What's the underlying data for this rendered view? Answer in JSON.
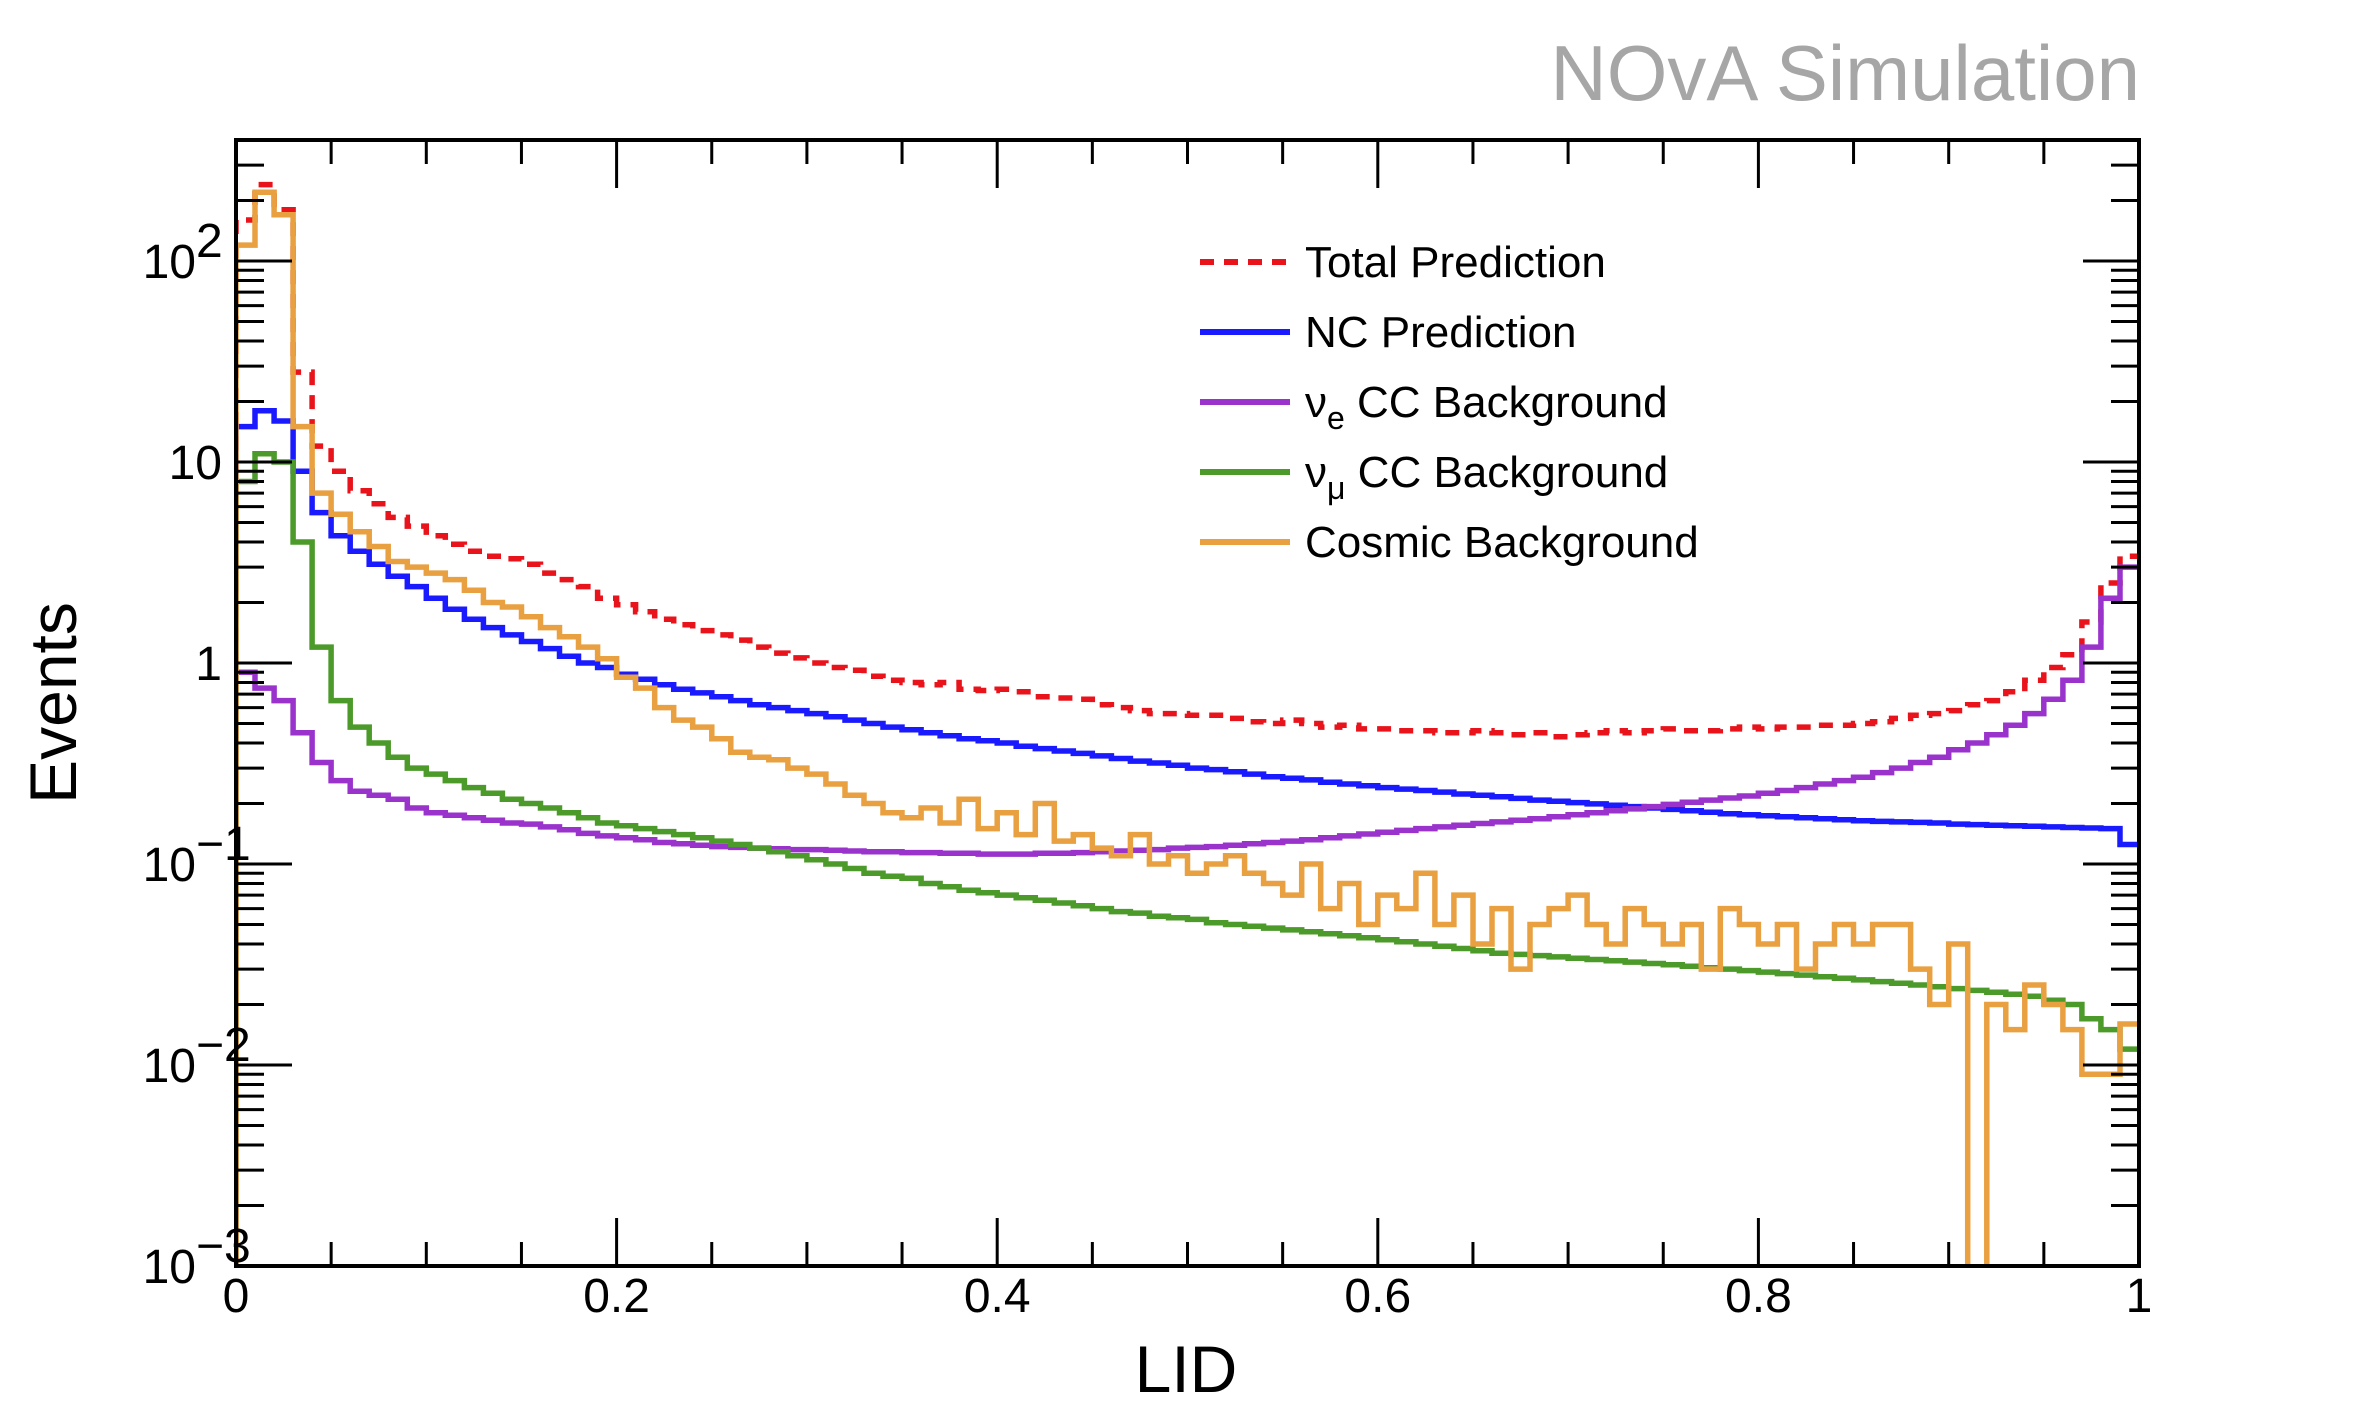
{
  "chart_data": {
    "type": "line",
    "watermark": "NOvA Simulation",
    "xlabel": "LID",
    "ylabel": "Events",
    "xlim": [
      0,
      1
    ],
    "ylim": [
      0.001,
      400
    ],
    "y_scale": "log",
    "grid": false,
    "legend_position": "top-center",
    "x_ticks": [
      {
        "value": 0,
        "label": "0"
      },
      {
        "value": 0.2,
        "label": "0.2"
      },
      {
        "value": 0.4,
        "label": "0.4"
      },
      {
        "value": 0.6,
        "label": "0.6"
      },
      {
        "value": 0.8,
        "label": "0.8"
      },
      {
        "value": 1,
        "label": "1"
      }
    ],
    "y_ticks": [
      {
        "value": 0.001,
        "base": "10",
        "exp": "−3"
      },
      {
        "value": 0.01,
        "base": "10",
        "exp": "−2"
      },
      {
        "value": 0.1,
        "base": "10",
        "exp": "−1"
      },
      {
        "value": 1,
        "base": "1",
        "exp": ""
      },
      {
        "value": 10,
        "base": "10",
        "exp": ""
      },
      {
        "value": 100,
        "base": "10",
        "exp": "2"
      }
    ],
    "x": [
      0.005,
      0.015,
      0.025,
      0.035,
      0.045,
      0.055,
      0.065,
      0.075,
      0.085,
      0.095,
      0.105,
      0.115,
      0.125,
      0.135,
      0.145,
      0.155,
      0.165,
      0.175,
      0.185,
      0.195,
      0.205,
      0.215,
      0.225,
      0.235,
      0.245,
      0.255,
      0.265,
      0.275,
      0.285,
      0.295,
      0.305,
      0.315,
      0.325,
      0.335,
      0.345,
      0.355,
      0.365,
      0.375,
      0.385,
      0.395,
      0.405,
      0.415,
      0.425,
      0.435,
      0.445,
      0.455,
      0.465,
      0.475,
      0.485,
      0.495,
      0.505,
      0.515,
      0.525,
      0.535,
      0.545,
      0.555,
      0.565,
      0.575,
      0.585,
      0.595,
      0.605,
      0.615,
      0.625,
      0.635,
      0.645,
      0.655,
      0.665,
      0.675,
      0.685,
      0.695,
      0.705,
      0.715,
      0.725,
      0.735,
      0.745,
      0.755,
      0.765,
      0.775,
      0.785,
      0.795,
      0.805,
      0.815,
      0.825,
      0.835,
      0.845,
      0.855,
      0.865,
      0.875,
      0.885,
      0.895,
      0.905,
      0.915,
      0.925,
      0.935,
      0.945,
      0.955,
      0.965,
      0.975,
      0.985,
      0.995
    ],
    "series": [
      {
        "name": "Total Prediction",
        "color": "#e8131b",
        "dash": true,
        "values": [
          160,
          240,
          180,
          28,
          12,
          9,
          7.2,
          6.2,
          5.3,
          4.8,
          4.3,
          3.9,
          3.6,
          3.4,
          3.3,
          3.1,
          2.8,
          2.6,
          2.4,
          2.1,
          1.95,
          1.8,
          1.65,
          1.55,
          1.45,
          1.38,
          1.3,
          1.2,
          1.12,
          1.06,
          1.0,
          0.95,
          0.92,
          0.86,
          0.82,
          0.8,
          0.78,
          0.8,
          0.74,
          0.73,
          0.74,
          0.72,
          0.68,
          0.67,
          0.66,
          0.62,
          0.6,
          0.58,
          0.56,
          0.56,
          0.55,
          0.55,
          0.53,
          0.51,
          0.5,
          0.52,
          0.5,
          0.48,
          0.49,
          0.47,
          0.47,
          0.46,
          0.46,
          0.45,
          0.45,
          0.46,
          0.45,
          0.44,
          0.45,
          0.43,
          0.44,
          0.45,
          0.46,
          0.45,
          0.46,
          0.47,
          0.46,
          0.46,
          0.47,
          0.48,
          0.47,
          0.48,
          0.48,
          0.49,
          0.49,
          0.5,
          0.51,
          0.53,
          0.55,
          0.56,
          0.58,
          0.62,
          0.65,
          0.72,
          0.82,
          0.95,
          1.1,
          1.6,
          2.5,
          3.4
        ]
      },
      {
        "name": "NC Prediction",
        "color": "#1a1aff",
        "dash": false,
        "values": [
          15,
          18,
          16,
          9,
          5.6,
          4.3,
          3.6,
          3.1,
          2.7,
          2.4,
          2.1,
          1.85,
          1.65,
          1.5,
          1.38,
          1.28,
          1.18,
          1.08,
          1.0,
          0.95,
          0.88,
          0.83,
          0.78,
          0.74,
          0.71,
          0.68,
          0.65,
          0.62,
          0.6,
          0.58,
          0.56,
          0.54,
          0.52,
          0.5,
          0.48,
          0.465,
          0.45,
          0.435,
          0.42,
          0.41,
          0.4,
          0.385,
          0.375,
          0.365,
          0.355,
          0.345,
          0.335,
          0.325,
          0.318,
          0.31,
          0.3,
          0.295,
          0.288,
          0.28,
          0.272,
          0.267,
          0.262,
          0.255,
          0.25,
          0.245,
          0.24,
          0.236,
          0.232,
          0.228,
          0.223,
          0.22,
          0.216,
          0.212,
          0.208,
          0.205,
          0.202,
          0.199,
          0.196,
          0.193,
          0.19,
          0.187,
          0.184,
          0.181,
          0.178,
          0.176,
          0.174,
          0.172,
          0.17,
          0.168,
          0.166,
          0.164,
          0.163,
          0.162,
          0.161,
          0.16,
          0.158,
          0.157,
          0.156,
          0.155,
          0.154,
          0.153,
          0.152,
          0.151,
          0.15,
          0.125
        ]
      },
      {
        "name": "νe CC Background",
        "sub": "e",
        "color": "#9933cc",
        "dash": false,
        "values": [
          0.9,
          0.75,
          0.65,
          0.45,
          0.32,
          0.26,
          0.23,
          0.22,
          0.21,
          0.19,
          0.18,
          0.175,
          0.17,
          0.165,
          0.16,
          0.158,
          0.153,
          0.148,
          0.142,
          0.138,
          0.135,
          0.132,
          0.128,
          0.126,
          0.124,
          0.122,
          0.121,
          0.12,
          0.119,
          0.118,
          0.118,
          0.117,
          0.116,
          0.115,
          0.115,
          0.114,
          0.114,
          0.113,
          0.113,
          0.112,
          0.112,
          0.112,
          0.113,
          0.113,
          0.114,
          0.115,
          0.116,
          0.117,
          0.118,
          0.12,
          0.121,
          0.122,
          0.124,
          0.126,
          0.128,
          0.13,
          0.132,
          0.135,
          0.138,
          0.141,
          0.144,
          0.147,
          0.15,
          0.153,
          0.156,
          0.159,
          0.162,
          0.165,
          0.168,
          0.172,
          0.176,
          0.18,
          0.184,
          0.188,
          0.193,
          0.198,
          0.203,
          0.208,
          0.213,
          0.218,
          0.225,
          0.232,
          0.24,
          0.25,
          0.26,
          0.27,
          0.285,
          0.3,
          0.32,
          0.34,
          0.37,
          0.4,
          0.44,
          0.49,
          0.56,
          0.66,
          0.82,
          1.2,
          2.1,
          3.0
        ]
      },
      {
        "name": "νμ CC Background",
        "sub": "μ",
        "color": "#4c9a2a",
        "dash": false,
        "values": [
          8,
          11,
          10,
          4.0,
          1.2,
          0.65,
          0.48,
          0.4,
          0.34,
          0.3,
          0.28,
          0.26,
          0.24,
          0.225,
          0.21,
          0.2,
          0.19,
          0.18,
          0.17,
          0.16,
          0.155,
          0.15,
          0.145,
          0.14,
          0.135,
          0.13,
          0.125,
          0.12,
          0.115,
          0.11,
          0.105,
          0.1,
          0.095,
          0.09,
          0.087,
          0.085,
          0.08,
          0.077,
          0.074,
          0.072,
          0.07,
          0.068,
          0.066,
          0.064,
          0.062,
          0.06,
          0.058,
          0.057,
          0.055,
          0.054,
          0.053,
          0.051,
          0.05,
          0.049,
          0.048,
          0.047,
          0.046,
          0.045,
          0.044,
          0.043,
          0.042,
          0.041,
          0.04,
          0.039,
          0.038,
          0.037,
          0.036,
          0.0355,
          0.035,
          0.0345,
          0.034,
          0.0335,
          0.033,
          0.0325,
          0.032,
          0.0315,
          0.031,
          0.0305,
          0.03,
          0.0295,
          0.029,
          0.0285,
          0.028,
          0.0275,
          0.027,
          0.0265,
          0.026,
          0.0255,
          0.025,
          0.0245,
          0.024,
          0.0235,
          0.023,
          0.0225,
          0.022,
          0.021,
          0.02,
          0.017,
          0.015,
          0.012
        ]
      },
      {
        "name": "Cosmic Background",
        "color": "#e8a040",
        "dash": false,
        "values": [
          120,
          220,
          170,
          15,
          7,
          5.5,
          4.5,
          3.8,
          3.2,
          3.0,
          2.8,
          2.6,
          2.3,
          2.0,
          1.9,
          1.7,
          1.5,
          1.35,
          1.2,
          1.05,
          0.85,
          0.75,
          0.6,
          0.52,
          0.48,
          0.42,
          0.36,
          0.34,
          0.33,
          0.3,
          0.28,
          0.25,
          0.22,
          0.2,
          0.18,
          0.17,
          0.19,
          0.16,
          0.21,
          0.15,
          0.18,
          0.14,
          0.2,
          0.13,
          0.14,
          0.12,
          0.11,
          0.14,
          0.1,
          0.11,
          0.09,
          0.1,
          0.11,
          0.09,
          0.08,
          0.07,
          0.1,
          0.06,
          0.08,
          0.05,
          0.07,
          0.06,
          0.09,
          0.05,
          0.07,
          0.04,
          0.06,
          0.03,
          0.05,
          0.06,
          0.07,
          0.05,
          0.04,
          0.06,
          0.05,
          0.04,
          0.05,
          0.03,
          0.06,
          0.05,
          0.04,
          0.05,
          0.03,
          0.04,
          0.05,
          0.04,
          0.05,
          0.05,
          0.03,
          0.02,
          0.04,
          0.0008,
          0.02,
          0.015,
          0.025,
          0.02,
          0.015,
          0.009,
          0.009,
          0.016
        ]
      }
    ]
  }
}
